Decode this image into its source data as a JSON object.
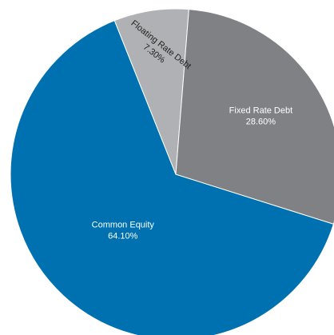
{
  "chart_data": {
    "type": "pie",
    "title": "",
    "slices": [
      {
        "label": "Common Equity",
        "value": 64.1,
        "value_label": "64.10%",
        "color": "#0071b0"
      },
      {
        "label": "Floating Rate Debt",
        "value": 7.3,
        "value_label": "7.30%",
        "color": "#b0b1b4"
      },
      {
        "label": "Fixed Rate Debt",
        "value": 28.6,
        "value_label": "28.60%",
        "color": "#808184"
      }
    ],
    "slice_border_color": "#ffffff"
  }
}
